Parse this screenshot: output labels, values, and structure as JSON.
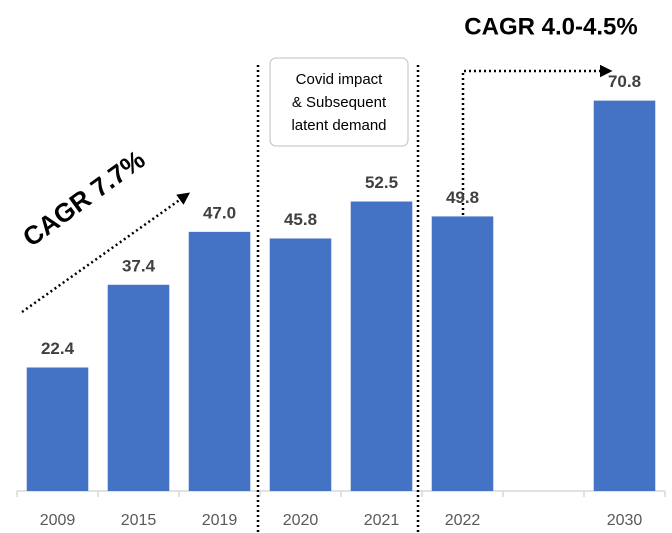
{
  "chart_data": {
    "type": "bar",
    "categories": [
      "2009",
      "2015",
      "2019",
      "2020",
      "2021",
      "2022",
      null,
      "2030"
    ],
    "values": [
      22.4,
      37.4,
      47.0,
      45.8,
      52.5,
      49.8,
      null,
      70.8
    ],
    "value_labels": [
      "22.4",
      "37.4",
      "47.0",
      "45.8",
      "52.5",
      "49.8",
      null,
      "70.8"
    ],
    "color": "#4472c4",
    "ylim": [
      0,
      72
    ],
    "annotations": {
      "cagr_left": "CAGR 7.7%",
      "cagr_right": "CAGR 4.0-4.5%",
      "covid_note": [
        "Covid impact",
        "& Subsequent",
        "latent demand"
      ]
    }
  }
}
